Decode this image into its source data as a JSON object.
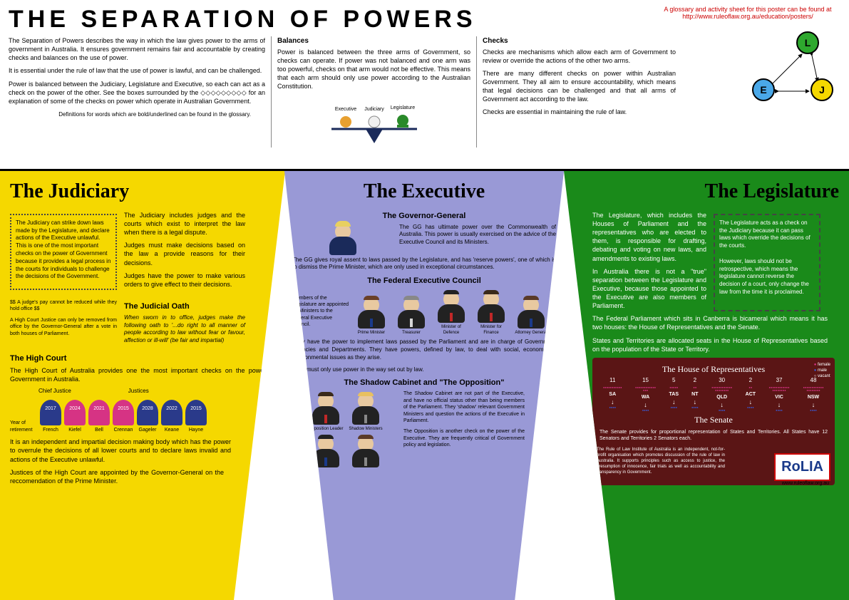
{
  "title": "THE SEPARATION OF POWERS",
  "glossary_note": "A glossary and activity sheet for this poster can be found at http://www.ruleoflaw.org.au/education/posters/",
  "intro": {
    "p1": "The Separation of Powers describes the way in which the law gives power to the arms of government in Australia. It ensures government remains fair and accountable by creating checks and balances on the use of power.",
    "p2": "It is essential under the rule of law that the use of power is lawful, and can be challenged.",
    "p3": "Power is balanced between the Judiciary, Legislature and Executive, so each can act as a check on the power of the other. See the boxes surrounded by the ◇◇◇◇◇◇◇◇◇ for an explanation of some of the checks on power which operate in Australian Government.",
    "def_note": "Definitions for words which are bold/underlined can be found in the glossary."
  },
  "balances": {
    "title": "Balances",
    "text": "Power is balanced between the three arms of Government, so checks can operate. If power was not balanced and one arm was too powerful, checks on that arm would not be effective. This means that each arm should only use power according to the Australian Constitution.",
    "labels": {
      "exec": "Executive",
      "jud": "Judiciary",
      "leg": "Legislature"
    }
  },
  "checks": {
    "title": "Checks",
    "p1": "Checks are mechanisms which allow each arm of Government to review or override the actions of the other two arms.",
    "p2": "There are many different checks on power within Australian Government. They all aim to ensure accountability, which means that legal decisions can be challenged and that all arms of Government act according to the law.",
    "p3": "Checks are essential in maintaining the rule of law.",
    "nodes": {
      "L": "L",
      "E": "E",
      "J": "J"
    },
    "colors": {
      "L": "#2ea82e",
      "E": "#4aa8e8",
      "J": "#f5d800"
    }
  },
  "judiciary": {
    "title": "The Judiciary",
    "check_box": "The Judiciary can strike down laws made by the Legislature, and declare actions of the Executive unlawful. This is one of the most important checks on the power of Government because it provides a legal process in the courts for individuals to challenge the decisions of the Government.",
    "body_p1": "The Judiciary includes judges and the courts which exist to interpret the law when there is a legal dispute.",
    "body_p2": "Judges must make decisions based on the law a provide reasons for their decisions.",
    "body_p3": "Judges have the power to make various orders to give effect to their decisions.",
    "note1": "$$ A judge's pay cannot be reduced while they hold office $$",
    "note2": "A High Court Justice can only be removed from office by the Governor-General after a vote in both houses of Parliament.",
    "oath_title": "The Judicial Oath",
    "oath": "When sworn in to office, judges make the following oath to '...do right to all manner of people according to law without fear or favour, affection or ill-will' (be fair and impartial)",
    "high_court_title": "The High Court",
    "high_court_text": "The High Court of Australia provides one the most important checks on the power of Government in Australia.",
    "chief_label": "Chief Justice",
    "justices_label": "Justices",
    "year_label": "Year of retirement",
    "justices": [
      {
        "name": "French",
        "year": "2017",
        "color": "#2a3a8a"
      },
      {
        "name": "Kiefel",
        "year": "2024",
        "color": "#d63384"
      },
      {
        "name": "Bell",
        "year": "2021",
        "color": "#d63384"
      },
      {
        "name": "Crennan",
        "year": "2015",
        "color": "#d63384"
      },
      {
        "name": "Gageler",
        "year": "2028",
        "color": "#2a3a8a"
      },
      {
        "name": "Keane",
        "year": "2022",
        "color": "#2a3a8a"
      },
      {
        "name": "Hayne",
        "year": "2015",
        "color": "#2a3a8a"
      }
    ],
    "hc_p1": "It is an independent and impartial decision making body which has the power to overrule the decisions of all lower courts and to declare laws invalid and actions of the Executive unlawful.",
    "hc_p2": "Justices of the High Court are appointed by the Governor-General on the reccomendation of the Prime Minister."
  },
  "executive": {
    "title": "The Executive",
    "gg_title": "The Governor-General",
    "gg_p1": "The GG has ultimate power over the Commonwealth of Australia. This power is usually exercised on the advice of the Executive Council and its Ministers.",
    "gg_p2": "The GG gives royal assent to laws passed by the Legislature, and has 'reserve powers', one of which is to dismiss the Prime Minister, which are only used in exceptional circumstances.",
    "fec_title": "The Federal Executive Council",
    "fec_intro": "Members of the Legislature are appointed as Ministers to the Federal Executive Council.",
    "ministers": [
      {
        "label": "Prime Minister",
        "tie": "#1a3a8a",
        "hair": "#6a4028"
      },
      {
        "label": "Treasurer",
        "tie": "#d6d6d6",
        "hair": "#888"
      },
      {
        "label": "Minister of Defence",
        "tie": "#c02828",
        "hair": "#222"
      },
      {
        "label": "Minister for Finance",
        "tie": "#c02828",
        "hair": "#3a2a1a"
      },
      {
        "label": "Attorney General",
        "tie": "#1a3a8a",
        "hair": "#5a3a28"
      }
    ],
    "fec_p1": "They have the power to implement laws passed by the Parliament and are in charge of Government Agencies and Departments. They have powers, defined by law, to deal with social, economic or environmental issues as they arise.",
    "fec_p2": "They must only use power in the way set out by law.",
    "shadow_title": "The Shadow Cabinet and \"The Opposition\"",
    "shadow_figs": [
      {
        "label": "Opposition Leader",
        "tie": "#c02828",
        "hair": "#3a2a1a"
      },
      {
        "label": "Shadow Ministers",
        "tie": "#888",
        "hair": "#e8c060"
      },
      {
        "label": "",
        "tie": "#1a3a8a",
        "hair": "#222"
      },
      {
        "label": "",
        "tie": "#888",
        "hair": "#5a3a28"
      }
    ],
    "shadow_p1": "The Shadow Cabinet are not part of the Executive, and have no official status other than being members of the Parliament. They 'shadow' relevant Government Ministers and question the actions of the Executive in Parliament.",
    "shadow_p2": "The Opposition is another check on the power of the Executive. They are frequently critical of Government policy and legislation."
  },
  "legislature": {
    "title": "The Legislature",
    "body_p1": "The Legislature, which includes the Houses of Parliament and the representatives who are elected to them, is responsible for drafting, debating and voting on new laws, and amendments to existing laws.",
    "body_p2": "In Australia there is not a \"true\" separation between the Legislature and Executive, because those appointed to the Executive are also members of Parliament.",
    "check_box": "The Legislature acts as a check on the Judiciary because it can pass laws which override the decisions of the courts.\n\nHowever, laws should not be retrospective, which means the legislature cannot reverse the decision of a court, only change the law from the time it is proclaimed.",
    "bicameral": "The Federal Parliament which sits in Canberra is bicameral which means it has two houses: the House of Representatives and the Senate.",
    "alloc": "States and Territories are allocated seats in the House of Representatives based on the population of the State or Territory.",
    "hor_title": "The House of Representatives",
    "legend": {
      "female": "female",
      "male": "male",
      "vacant": "vacant"
    },
    "states": [
      {
        "abbr": "SA",
        "seats": 11
      },
      {
        "abbr": "WA",
        "seats": 15
      },
      {
        "abbr": "TAS",
        "seats": 5
      },
      {
        "abbr": "NT",
        "seats": 2
      },
      {
        "abbr": "QLD",
        "seats": 30
      },
      {
        "abbr": "ACT",
        "seats": 2
      },
      {
        "abbr": "VIC",
        "seats": 37
      },
      {
        "abbr": "NSW",
        "seats": 48
      }
    ],
    "sen_title": "The Senate",
    "sen_text": "The Senate provides for proportional representation of States and Territories. All States have 12 Senators and Territories 2 Senators each.",
    "rolia_desc": "The Rule of Law Institute of Australia is an independent, not-for-profit organisation which promotes discussion of the rule of law in Australia. It supports principles such as access to justice, the presumption of innocence, fair trials as well as accountability and transparency in Government.",
    "rolia": "RoLIA",
    "url": "www.ruleoflaw.org.au"
  }
}
